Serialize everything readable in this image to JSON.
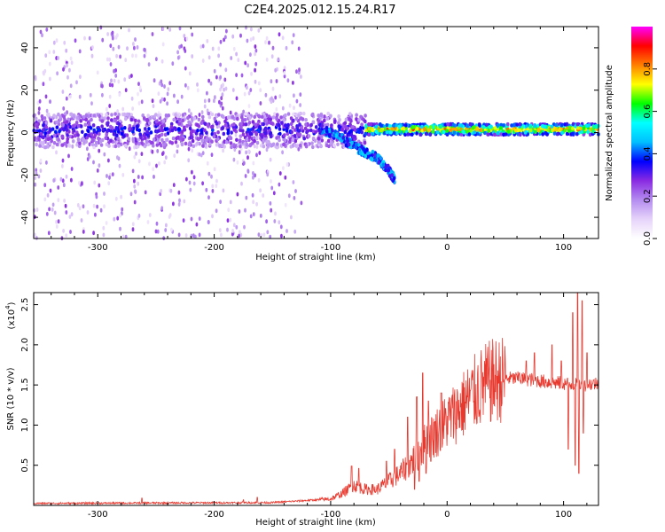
{
  "title": "C2E4.2025.012.15.24.R17",
  "chart_data": [
    {
      "type": "heatmap",
      "title": "C2E4.2025.012.15.24.R17",
      "xlabel": "Height of straight line (km)",
      "ylabel": "Frequency (Hz)",
      "xlim": [
        -355,
        130
      ],
      "ylim": [
        -50,
        50
      ],
      "xticks": [
        -300,
        -200,
        -100,
        0,
        100
      ],
      "xtick_labels": [
        "-300",
        "-200",
        "-100",
        "0",
        "100"
      ],
      "yticks": [
        -40,
        -20,
        0,
        20,
        40
      ],
      "ytick_labels": [
        "-40",
        "-20",
        "0",
        "20",
        "40"
      ],
      "colorbar": {
        "label": "Normalized spectral amplitude",
        "range": [
          0,
          1
        ],
        "ticks": [
          0.0,
          0.2,
          0.4,
          0.6,
          0.8
        ],
        "tick_labels": [
          "0.0",
          "0.2",
          "0.4",
          "0.6",
          "0.8"
        ],
        "colors": [
          "#ffffff",
          "#e6d4fa",
          "#b48cf0",
          "#8a2be2",
          "#0000ff",
          "#00bfff",
          "#00ffff",
          "#00ff00",
          "#ffff00",
          "#ff8000",
          "#ff0000",
          "#ff00ff"
        ]
      },
      "features": [
        {
          "description": "scattered weak background",
          "x_range": [
            -355,
            -125
          ],
          "freq_range": [
            -50,
            50
          ],
          "amplitude": 0.05
        },
        {
          "description": "main band",
          "x_range": [
            -355,
            -70
          ],
          "center_freq": 1,
          "half_width": 8,
          "amplitude": 0.25
        },
        {
          "description": "bending branch",
          "points": [
            [
              -110,
              2
            ],
            [
              -90,
              -3
            ],
            [
              -75,
              -8
            ],
            [
              -60,
              -12
            ],
            [
              -50,
              -18
            ],
            [
              -45,
              -22
            ]
          ],
          "amplitude": 0.3
        },
        {
          "description": "strong band",
          "x_range": [
            -70,
            130
          ],
          "center_freq": 1.5,
          "half_width": 2.5,
          "amplitude": 0.75
        }
      ]
    },
    {
      "type": "line",
      "xlabel": "Height of straight line (km)",
      "ylabel": "SNR (10 * v/v)",
      "y_multiplier_label": "(x10",
      "y_multiplier_exponent": "4",
      "xlim": [
        -355,
        130
      ],
      "ylim": [
        0,
        26500
      ],
      "xticks": [
        -300,
        -200,
        -100,
        0,
        100
      ],
      "xtick_labels": [
        "-300",
        "-200",
        "-100",
        "0",
        "100"
      ],
      "yticks": [
        5000,
        10000,
        15000,
        20000,
        25000
      ],
      "ytick_labels": [
        "0.5",
        "1.0",
        "1.5",
        "2.0",
        "2.5"
      ],
      "series": [
        {
          "color": "#e8392f",
          "baseline": [
            [
              -355,
              250
            ],
            [
              -150,
              350
            ],
            [
              -100,
              800
            ],
            [
              -90,
              1500
            ],
            [
              -80,
              2500
            ],
            [
              -70,
              2000
            ],
            [
              -60,
              2000
            ],
            [
              -50,
              3000
            ],
            [
              -40,
              4000
            ],
            [
              -30,
              5500
            ],
            [
              -20,
              7500
            ],
            [
              -10,
              9000
            ],
            [
              0,
              10500
            ],
            [
              10,
              12000
            ],
            [
              20,
              13500
            ],
            [
              30,
              14800
            ],
            [
              40,
              15500
            ],
            [
              50,
              15800
            ],
            [
              60,
              15800
            ],
            [
              70,
              15700
            ],
            [
              80,
              15500
            ],
            [
              90,
              15300
            ],
            [
              100,
              15200
            ],
            [
              110,
              15000
            ],
            [
              130,
              15200
            ]
          ],
          "spikes": [
            [
              -262,
              900
            ],
            [
              -175,
              700
            ],
            [
              -163,
              1000
            ],
            [
              -82,
              4900
            ],
            [
              -76,
              4600
            ],
            [
              -52,
              5500
            ],
            [
              -45,
              7000
            ],
            [
              -34,
              11000
            ],
            [
              -26,
              13500
            ],
            [
              -21,
              16500
            ],
            [
              -16,
              13000
            ],
            [
              -5,
              14000
            ],
            [
              62,
              16500
            ],
            [
              68,
              18000
            ],
            [
              75,
              19000
            ],
            [
              82,
              16000
            ],
            [
              90,
              20000
            ],
            [
              98,
              18000
            ],
            [
              104,
              22000
            ],
            [
              108,
              24000
            ],
            [
              112,
              26500
            ],
            [
              116,
              25500
            ],
            [
              120,
              19000
            ]
          ],
          "dips": [
            [
              -28,
              2000
            ],
            [
              -24,
              3000
            ],
            [
              -18,
              4000
            ],
            [
              -14,
              5500
            ],
            [
              104,
              7000
            ],
            [
              110,
              5000
            ],
            [
              113,
              4000
            ],
            [
              117,
              9000
            ]
          ]
        }
      ]
    }
  ]
}
